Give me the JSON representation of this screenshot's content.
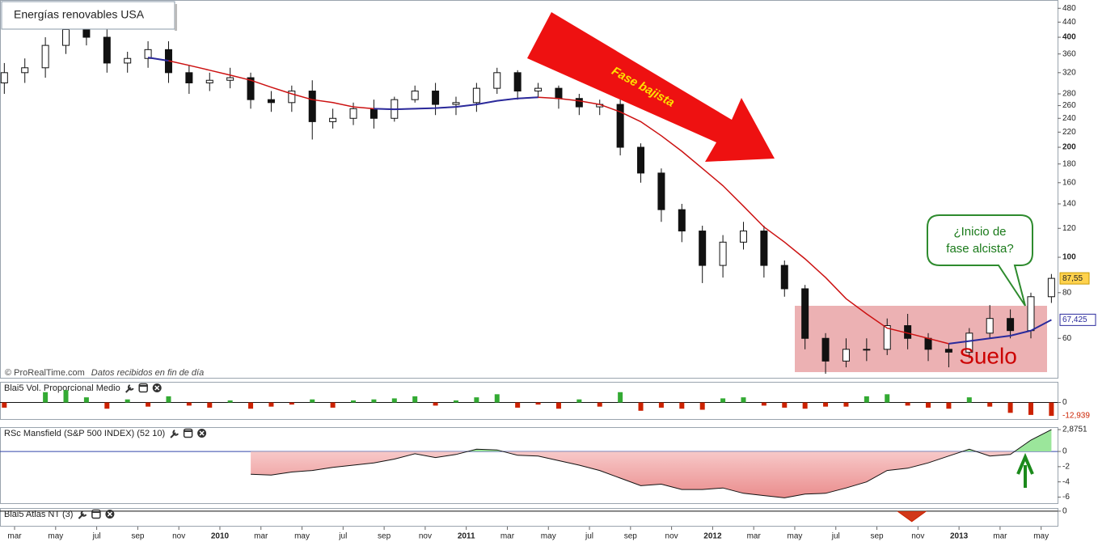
{
  "chart_data": [
    {
      "type": "candlestick",
      "title": "Energías renovables USA",
      "source": "© ProRealTime.com",
      "source_note": "Datos recibidos en fin de día",
      "x": [
        1.5,
        2.5,
        3.5,
        4.5,
        5.5,
        6.5,
        7.5,
        8.5,
        9.5,
        10.5,
        11.5,
        12.5,
        13.5,
        14.5,
        15.5,
        16.5,
        17.5,
        18.5,
        19.5,
        20.5,
        21.5,
        22.5,
        23.5,
        24.5,
        25.5,
        26.5,
        27.5,
        28.5,
        29.5,
        30.5,
        31.5,
        32.5,
        33.5,
        34.5,
        35.5,
        36.5,
        37.5,
        38.5,
        39.5,
        40.5,
        41.5,
        42.5,
        43.5,
        44.5,
        45.5,
        46.5,
        47.5,
        48.5,
        49.5,
        50.5,
        51.5,
        52.5
      ],
      "open": [
        300,
        320,
        330,
        380,
        420,
        400,
        340,
        350,
        370,
        320,
        300,
        305,
        310,
        270,
        265,
        285,
        235,
        240,
        255,
        240,
        270,
        285,
        262,
        265,
        290,
        320,
        285,
        290,
        272,
        258,
        262,
        200,
        170,
        135,
        118,
        95,
        110,
        118,
        95,
        82,
        60,
        52,
        56,
        56,
        65,
        60,
        56,
        55,
        62,
        68,
        63,
        78
      ],
      "high": [
        340,
        350,
        400,
        440,
        445,
        420,
        365,
        390,
        390,
        335,
        320,
        330,
        320,
        285,
        295,
        305,
        255,
        265,
        270,
        275,
        295,
        300,
        275,
        300,
        330,
        325,
        300,
        295,
        280,
        270,
        270,
        205,
        175,
        140,
        122,
        115,
        125,
        122,
        98,
        84,
        62,
        60,
        60,
        68,
        70,
        62,
        58,
        64,
        74,
        72,
        80,
        90
      ],
      "low": [
        280,
        300,
        310,
        360,
        380,
        320,
        320,
        330,
        300,
        280,
        285,
        290,
        255,
        250,
        250,
        210,
        225,
        230,
        225,
        235,
        265,
        245,
        245,
        250,
        280,
        270,
        275,
        255,
        245,
        245,
        190,
        160,
        125,
        110,
        85,
        88,
        105,
        88,
        78,
        56,
        48,
        50,
        52,
        54,
        56,
        52,
        50,
        53,
        60,
        60,
        60,
        75
      ],
      "close": [
        320,
        330,
        380,
        420,
        400,
        340,
        350,
        370,
        320,
        300,
        305,
        310,
        270,
        265,
        285,
        235,
        240,
        255,
        240,
        270,
        285,
        262,
        265,
        290,
        320,
        285,
        290,
        272,
        258,
        262,
        200,
        170,
        135,
        118,
        95,
        110,
        118,
        95,
        82,
        60,
        52,
        56,
        56,
        65,
        60,
        56,
        55,
        62,
        68,
        63,
        78,
        87.55
      ],
      "last_price": {
        "value": 87.55,
        "label": "87,55"
      },
      "up_color": "#ffffff",
      "down_color": "#111111",
      "lines": [
        {
          "color": "#cc1111",
          "values": [
            null,
            null,
            null,
            null,
            null,
            null,
            null,
            352,
            345,
            335,
            325,
            315,
            305,
            292,
            280,
            270,
            265,
            258,
            255,
            254,
            255,
            256,
            258,
            262,
            268,
            272,
            274,
            272,
            268,
            262,
            250,
            235,
            215,
            195,
            175,
            157,
            138,
            121,
            110,
            99,
            88,
            77,
            70,
            64,
            62,
            60,
            58,
            null,
            null,
            null,
            null,
            null
          ]
        },
        {
          "color": "#2a2a9c",
          "values": [
            null,
            null,
            null,
            null,
            null,
            null,
            null,
            352,
            345,
            null,
            null,
            null,
            null,
            null,
            null,
            null,
            null,
            null,
            255,
            254,
            255,
            256,
            258,
            262,
            268,
            272,
            274,
            null,
            null,
            null,
            null,
            null,
            null,
            null,
            null,
            null,
            null,
            null,
            null,
            null,
            null,
            null,
            null,
            null,
            null,
            null,
            58,
            59,
            60,
            61,
            63,
            67.425
          ],
          "end_label": {
            "value": 67.425,
            "label": "67,425"
          }
        }
      ],
      "log_scale": true,
      "ylim": [
        46.8,
        505.8
      ],
      "yticks": [
        60,
        80,
        100,
        120,
        140,
        160,
        180,
        200,
        220,
        240,
        260,
        280,
        320,
        360,
        400,
        440,
        480
      ],
      "xlim": [
        1.29,
        52.8
      ],
      "xticks": [
        {
          "value": 2,
          "label": "mar"
        },
        {
          "value": 4,
          "label": "may"
        },
        {
          "value": 6,
          "label": "jul"
        },
        {
          "value": 8,
          "label": "sep"
        },
        {
          "value": 10,
          "label": "nov"
        },
        {
          "value": 12,
          "label": "2010"
        },
        {
          "value": 14,
          "label": "mar"
        },
        {
          "value": 16,
          "label": "may"
        },
        {
          "value": 18,
          "label": "jul"
        },
        {
          "value": 20,
          "label": "sep"
        },
        {
          "value": 22,
          "label": "nov"
        },
        {
          "value": 24,
          "label": "2011"
        },
        {
          "value": 26,
          "label": "mar"
        },
        {
          "value": 28,
          "label": "may"
        },
        {
          "value": 30,
          "label": "jul"
        },
        {
          "value": 32,
          "label": "sep"
        },
        {
          "value": 34,
          "label": "nov"
        },
        {
          "value": 36,
          "label": "2012"
        },
        {
          "value": 38,
          "label": "mar"
        },
        {
          "value": 40,
          "label": "may"
        },
        {
          "value": 42,
          "label": "jul"
        },
        {
          "value": 44,
          "label": "sep"
        },
        {
          "value": 46,
          "label": "nov"
        },
        {
          "value": 48,
          "label": "2013"
        },
        {
          "value": 50,
          "label": "mar"
        },
        {
          "value": 52,
          "label": "may"
        }
      ],
      "annotations": {
        "trend": "Fase bajista",
        "zone": "Suelo",
        "callout": [
          "¿Inicio de",
          "fase alcista?"
        ]
      }
    },
    {
      "type": "bar",
      "title": "Blai5 Vol. Proporcional Medio",
      "values": [
        -5,
        0,
        10,
        12,
        5,
        -6,
        3,
        -4,
        6,
        -3,
        -5,
        2,
        -6,
        -4,
        -2,
        3,
        -5,
        2,
        3,
        4,
        6,
        -3,
        2,
        5,
        8,
        -5,
        -2,
        -6,
        3,
        -4,
        10,
        -8,
        -5,
        -6,
        -7,
        4,
        5,
        -3,
        -5,
        -6,
        -4,
        -4,
        6,
        8,
        -3,
        -5,
        -6,
        5,
        -4,
        -10,
        -12,
        -12.939
      ],
      "last_label": {
        "value": -12.939,
        "label": "-12,939"
      },
      "colors": {
        "positive": "#33aa33",
        "negative": "#cc2200"
      },
      "ylim": [
        -16,
        20
      ],
      "yticks": [
        0
      ]
    },
    {
      "type": "area",
      "title": "RSc Mansfield (S&P 500 INDEX) (52 10)",
      "values": [
        null,
        null,
        null,
        null,
        null,
        null,
        null,
        null,
        null,
        null,
        null,
        null,
        -3,
        -3.1,
        -2.7,
        -2.5,
        -2.1,
        -1.8,
        -1.5,
        -1,
        -0.3,
        -0.8,
        -0.4,
        0.3,
        0.2,
        -0.5,
        -0.6,
        -1.2,
        -1.8,
        -2.5,
        -3.5,
        -4.5,
        -4.3,
        -5,
        -5,
        -4.8,
        -5.5,
        -5.8,
        -6.1,
        -5.6,
        -5.5,
        -4.8,
        -4,
        -2.5,
        -2.2,
        -1.5,
        -0.6,
        0.3,
        -0.6,
        -0.4,
        1.5,
        2.8751
      ],
      "color": "#111111",
      "ylim": [
        -6.8,
        3.2
      ],
      "yticks": [
        {
          "value": 2.8751,
          "label": "2,8751"
        },
        0,
        -2,
        -4,
        -6
      ]
    },
    {
      "type": "area",
      "title": "Blai5 Atlas NT (3)",
      "x": [
        45,
        45.7,
        46.4
      ],
      "values": [
        0,
        -1,
        0
      ],
      "color": "#cc2200",
      "ylim": [
        -1.4,
        0.3
      ],
      "yticks": [
        0
      ]
    }
  ]
}
